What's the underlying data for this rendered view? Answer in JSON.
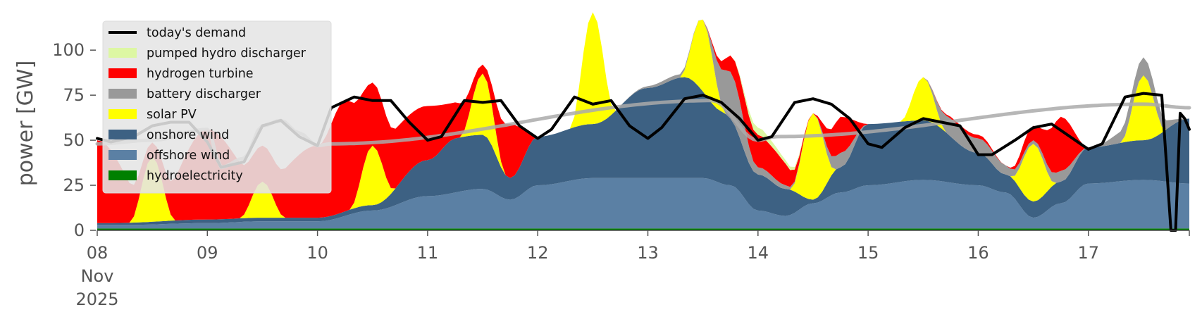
{
  "chart_data": {
    "type": "area",
    "ylabel": "power [GW]",
    "ylim": [
      0,
      120
    ],
    "xlim": [
      "2025-11-08T00:00",
      "2025-11-17T22:00"
    ],
    "y_ticks": [
      0,
      25,
      50,
      75,
      100
    ],
    "x_ticks": [
      {
        "date": "2025-11-08",
        "label": "08",
        "sublabel_1": "Nov",
        "sublabel_2": "2025"
      },
      {
        "date": "2025-11-09",
        "label": "09"
      },
      {
        "date": "2025-11-10",
        "label": "10"
      },
      {
        "date": "2025-11-11",
        "label": "11"
      },
      {
        "date": "2025-11-12",
        "label": "12"
      },
      {
        "date": "2025-11-13",
        "label": "13"
      },
      {
        "date": "2025-11-14",
        "label": "14"
      },
      {
        "date": "2025-11-15",
        "label": "15"
      },
      {
        "date": "2025-11-16",
        "label": "16"
      },
      {
        "date": "2025-11-17",
        "label": "17"
      }
    ],
    "legend_position": "top-left",
    "grid": false,
    "stack_order": [
      "hydroelectricity",
      "offshore wind",
      "onshore wind",
      "solar PV",
      "battery discharger",
      "hydrogen turbine",
      "pumped hydro discharger"
    ],
    "series": [
      {
        "name": "hydroelectricity",
        "color": "#008000",
        "x": [
          "2025-11-08T00:00",
          "2025-11-10T00:00",
          "2025-11-12T00:00",
          "2025-11-14T00:00",
          "2025-11-16T00:00",
          "2025-11-17T22:00"
        ],
        "values": [
          1,
          1,
          1,
          1,
          1,
          1
        ]
      },
      {
        "name": "offshore wind",
        "color": "#5b80a4",
        "x": [
          "2025-11-08T00:00",
          "2025-11-08T06:00",
          "2025-11-09T00:00",
          "2025-11-09T12:00",
          "2025-11-10T00:00",
          "2025-11-10T12:00",
          "2025-11-11T00:00",
          "2025-11-11T12:00",
          "2025-11-11T18:00",
          "2025-11-12T00:00",
          "2025-11-12T12:00",
          "2025-11-13T00:00",
          "2025-11-13T12:00",
          "2025-11-13T18:00",
          "2025-11-14T00:00",
          "2025-11-14T06:00",
          "2025-11-14T12:00",
          "2025-11-14T18:00",
          "2025-11-15T00:00",
          "2025-11-15T12:00",
          "2025-11-16T00:00",
          "2025-11-16T06:00",
          "2025-11-16T12:00",
          "2025-11-16T18:00",
          "2025-11-17T00:00",
          "2025-11-17T12:00",
          "2025-11-17T22:00"
        ],
        "values": [
          2,
          2,
          3,
          4,
          4,
          10,
          18,
          22,
          16,
          24,
          28,
          28,
          28,
          24,
          10,
          7,
          14,
          20,
          24,
          27,
          24,
          20,
          6,
          14,
          25,
          27,
          25
        ]
      },
      {
        "name": "onshore wind",
        "color": "#3d6183",
        "x": [
          "2025-11-08T00:00",
          "2025-11-09T00:00",
          "2025-11-10T00:00",
          "2025-11-10T12:00",
          "2025-11-11T00:00",
          "2025-11-11T06:00",
          "2025-11-11T12:00",
          "2025-11-11T18:00",
          "2025-11-12T00:00",
          "2025-11-12T12:00",
          "2025-11-13T00:00",
          "2025-11-13T08:00",
          "2025-11-13T16:00",
          "2025-11-14T00:00",
          "2025-11-14T06:00",
          "2025-11-14T12:00",
          "2025-11-14T18:00",
          "2025-11-15T00:00",
          "2025-11-15T12:00",
          "2025-11-16T00:00",
          "2025-11-16T06:00",
          "2025-11-16T12:00",
          "2025-11-16T18:00",
          "2025-11-17T00:00",
          "2025-11-17T12:00",
          "2025-11-17T22:00"
        ],
        "values": [
          1,
          2,
          2,
          3,
          20,
          30,
          30,
          12,
          27,
          30,
          50,
          56,
          40,
          20,
          15,
          2,
          14,
          34,
          33,
          18,
          10,
          9,
          12,
          20,
          22,
          36
        ]
      },
      {
        "name": "solar PV",
        "color": "#ffff00",
        "x": [
          "2025-11-08T00:00",
          "2025-11-08T07:00",
          "2025-11-08T12:00",
          "2025-11-08T17:00",
          "2025-11-09T07:00",
          "2025-11-09T12:00",
          "2025-11-09T17:00",
          "2025-11-10T07:00",
          "2025-11-10T12:00",
          "2025-11-10T17:00",
          "2025-11-11T07:00",
          "2025-11-11T12:00",
          "2025-11-11T17:00",
          "2025-11-12T07:00",
          "2025-11-12T12:00",
          "2025-11-12T17:00",
          "2025-11-13T07:00",
          "2025-11-13T12:00",
          "2025-11-13T17:00",
          "2025-11-14T07:00",
          "2025-11-14T12:00",
          "2025-11-14T17:00",
          "2025-11-15T07:00",
          "2025-11-15T12:00",
          "2025-11-15T17:00",
          "2025-11-16T07:00",
          "2025-11-16T12:00",
          "2025-11-16T17:00",
          "2025-11-17T07:00",
          "2025-11-17T12:00",
          "2025-11-17T17:00",
          "2025-11-17T22:00"
        ],
        "values": [
          0,
          0,
          36,
          0,
          0,
          20,
          0,
          0,
          33,
          0,
          0,
          34,
          0,
          0,
          62,
          0,
          0,
          40,
          0,
          0,
          48,
          0,
          0,
          24,
          0,
          0,
          32,
          0,
          0,
          36,
          0,
          0
        ]
      },
      {
        "name": "battery discharger",
        "color": "#999999",
        "x": [
          "2025-11-08T00:00",
          "2025-11-12T18:00",
          "2025-11-13T06:00",
          "2025-11-13T12:00",
          "2025-11-13T18:00",
          "2025-11-14T00:00",
          "2025-11-14T12:00",
          "2025-11-14T18:00",
          "2025-11-15T00:00",
          "2025-11-15T12:00",
          "2025-11-15T18:00",
          "2025-11-16T00:00",
          "2025-11-16T12:00",
          "2025-11-16T18:00",
          "2025-11-17T00:00",
          "2025-11-17T12:00",
          "2025-11-17T22:00"
        ],
        "values": [
          0,
          0,
          2,
          0,
          26,
          4,
          0,
          8,
          0,
          0,
          10,
          8,
          2,
          6,
          0,
          10,
          0
        ]
      },
      {
        "name": "hydrogen turbine",
        "color": "#ff0000",
        "x": [
          "2025-11-08T00:00",
          "2025-11-08T12:00",
          "2025-11-09T00:00",
          "2025-11-09T12:00",
          "2025-11-10T00:00",
          "2025-11-10T06:00",
          "2025-11-10T12:00",
          "2025-11-11T00:00",
          "2025-11-11T06:00",
          "2025-11-11T12:00",
          "2025-11-11T18:00",
          "2025-11-12T00:00",
          "2025-11-12T12:00",
          "2025-11-13T00:00",
          "2025-11-13T12:00",
          "2025-11-14T00:00",
          "2025-11-14T03:00",
          "2025-11-14T12:00",
          "2025-11-14T18:00",
          "2025-11-15T00:00",
          "2025-11-15T12:00",
          "2025-11-16T00:00",
          "2025-11-16T06:00",
          "2025-11-16T12:00",
          "2025-11-16T18:00",
          "2025-11-17T00:00",
          "2025-11-17T12:00",
          "2025-11-17T22:00"
        ],
        "values": [
          46,
          8,
          50,
          20,
          40,
          62,
          35,
          30,
          20,
          5,
          30,
          0,
          0,
          0,
          0,
          18,
          16,
          0,
          20,
          0,
          0,
          2,
          0,
          8,
          30,
          0,
          0,
          0
        ]
      },
      {
        "name": "pumped hydro discharger",
        "color": "#ddf7a3",
        "x": [
          "2025-11-08T00:00",
          "2025-11-13T18:00",
          "2025-11-14T00:00",
          "2025-11-14T06:00",
          "2025-11-14T12:00",
          "2025-11-17T22:00"
        ],
        "values": [
          0,
          0,
          4,
          2,
          0,
          0
        ]
      },
      {
        "name": "today's demand",
        "color": "#000000",
        "line": true,
        "x": [
          "2025-11-08T00:00",
          "2025-11-08T03:00",
          "2025-11-08T08:00",
          "2025-11-08T12:00",
          "2025-11-08T16:00",
          "2025-11-08T20:00",
          "2025-11-09T00:00",
          "2025-11-09T03:00",
          "2025-11-09T08:00",
          "2025-11-09T12:00",
          "2025-11-09T16:00",
          "2025-11-09T20:00",
          "2025-11-10T00:00",
          "2025-11-10T03:00",
          "2025-11-10T08:00",
          "2025-11-10T12:00",
          "2025-11-10T16:00",
          "2025-11-10T20:00",
          "2025-11-11T00:00",
          "2025-11-11T03:00",
          "2025-11-11T08:00",
          "2025-11-11T12:00",
          "2025-11-11T16:00",
          "2025-11-11T20:00",
          "2025-11-12T00:00",
          "2025-11-12T03:00",
          "2025-11-12T08:00",
          "2025-11-12T12:00",
          "2025-11-12T16:00",
          "2025-11-12T20:00",
          "2025-11-13T00:00",
          "2025-11-13T03:00",
          "2025-11-13T08:00",
          "2025-11-13T12:00",
          "2025-11-13T16:00",
          "2025-11-13T20:00",
          "2025-11-14T00:00",
          "2025-11-14T03:00",
          "2025-11-14T08:00",
          "2025-11-14T12:00",
          "2025-11-14T16:00",
          "2025-11-14T20:00",
          "2025-11-15T00:00",
          "2025-11-15T03:00",
          "2025-11-15T08:00",
          "2025-11-15T12:00",
          "2025-11-15T16:00",
          "2025-11-15T20:00",
          "2025-11-16T00:00",
          "2025-11-16T03:00",
          "2025-11-16T08:00",
          "2025-11-16T12:00",
          "2025-11-16T16:00",
          "2025-11-16T20:00",
          "2025-11-17T00:00",
          "2025-11-17T03:00",
          "2025-11-17T08:00",
          "2025-11-17T12:00",
          "2025-11-17T16:00",
          "2025-11-17T18:00",
          "2025-11-17T19:00",
          "2025-11-17T20:00",
          "2025-11-17T21:00",
          "2025-11-17T22:00"
        ],
        "values": [
          51,
          49,
          52,
          58,
          60,
          60,
          49,
          35,
          38,
          58,
          61,
          52,
          47,
          68,
          74,
          72,
          72,
          60,
          50,
          52,
          72,
          71,
          72,
          58,
          51,
          56,
          74,
          70,
          72,
          58,
          51,
          57,
          73,
          75,
          71,
          62,
          50,
          52,
          71,
          73,
          70,
          62,
          48,
          46,
          57,
          62,
          60,
          58,
          42,
          42,
          50,
          57,
          59,
          52,
          45,
          48,
          74,
          76,
          75,
          0,
          0,
          65,
          62,
          56
        ]
      },
      {
        "name": "grey reference line",
        "color": "#aaaaaa",
        "line": true,
        "no_legend": true,
        "x": [
          "2025-11-08T00:00",
          "2025-11-08T12:00",
          "2025-11-09T00:00",
          "2025-11-09T03:00",
          "2025-11-09T08:00",
          "2025-11-09T12:00",
          "2025-11-09T16:00",
          "2025-11-09T20:00",
          "2025-11-10T00:00",
          "2025-11-10T03:00",
          "2025-11-13T14:00",
          "2025-11-14T00:00",
          "2025-11-14T04:00",
          "2025-11-17T12:00",
          "2025-11-17T22:00"
        ],
        "values": [
          48,
          50,
          56,
          35,
          40,
          58,
          61,
          54,
          47,
          48,
          72,
          50,
          52,
          70,
          68
        ]
      }
    ]
  },
  "legend": {
    "items": [
      {
        "label": "today's demand",
        "color": "#000000",
        "kind": "line"
      },
      {
        "label": "pumped hydro discharger",
        "color": "#ddf7a3",
        "kind": "patch"
      },
      {
        "label": "hydrogen turbine",
        "color": "#ff0000",
        "kind": "patch"
      },
      {
        "label": "battery discharger",
        "color": "#999999",
        "kind": "patch"
      },
      {
        "label": "solar PV",
        "color": "#ffff00",
        "kind": "patch"
      },
      {
        "label": "onshore wind",
        "color": "#3d6183",
        "kind": "patch"
      },
      {
        "label": "offshore wind",
        "color": "#5b80a4",
        "kind": "patch"
      },
      {
        "label": "hydroelectricity",
        "color": "#008000",
        "kind": "patch"
      }
    ]
  }
}
